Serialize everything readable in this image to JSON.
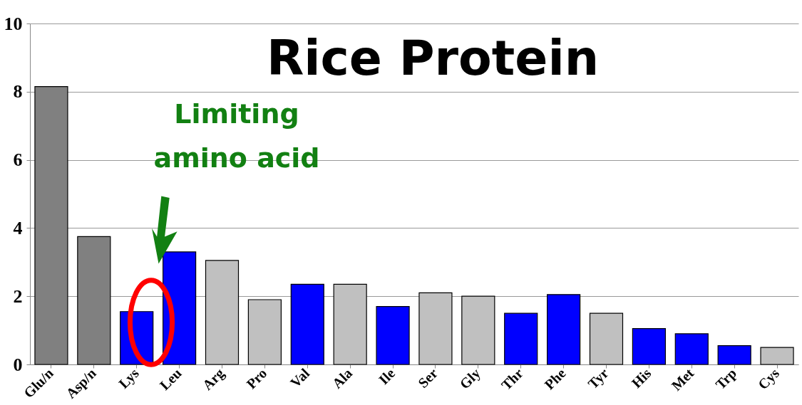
{
  "chart_data": {
    "type": "bar",
    "title": "Rice Protein",
    "categories": [
      "Glu/n",
      "Asp/n",
      "Lys",
      "Leu",
      "Arg",
      "Pro",
      "Val",
      "Ala",
      "Ile",
      "Ser",
      "Gly",
      "Thr",
      "Phe",
      "Tyr",
      "His",
      "Met",
      "Trp",
      "Cys"
    ],
    "values": [
      8.15,
      3.75,
      1.55,
      3.3,
      3.05,
      1.9,
      2.35,
      2.35,
      1.7,
      2.1,
      2.0,
      1.5,
      2.05,
      1.5,
      1.05,
      0.9,
      0.55,
      0.5
    ],
    "colors": [
      "#808080",
      "#808080",
      "#0000ff",
      "#0000ff",
      "#c0c0c0",
      "#c0c0c0",
      "#0000ff",
      "#c0c0c0",
      "#0000ff",
      "#c0c0c0",
      "#c0c0c0",
      "#0000ff",
      "#0000ff",
      "#c0c0c0",
      "#0000ff",
      "#0000ff",
      "#0000ff",
      "#c0c0c0"
    ],
    "ylim": [
      0,
      10
    ],
    "yticks": [
      0,
      2,
      4,
      6,
      8,
      10
    ],
    "grid": "y",
    "annotations": [
      "Limiting\namino acid"
    ]
  }
}
